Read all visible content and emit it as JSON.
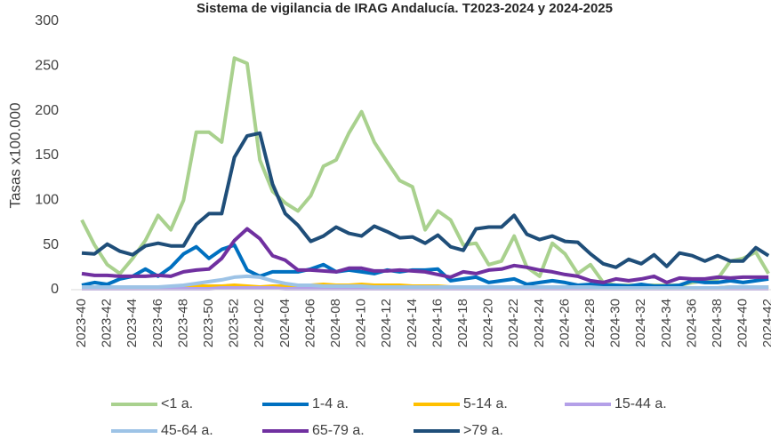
{
  "chart_data": {
    "type": "line",
    "title": "Sistema de vigilancia de IRAG Andalucía. T2023-2024 y 2024-2025",
    "y_label": "Tasas x100.000",
    "categories": [
      "2023-40",
      null,
      "2023-42",
      null,
      "2023-44",
      null,
      "2023-46",
      null,
      "2023-48",
      null,
      "2023-50",
      null,
      "2023-52",
      null,
      "2024-02",
      null,
      "2024-04",
      null,
      "2024-06",
      null,
      "2024-08",
      null,
      "2024-10",
      null,
      "2024-12",
      null,
      "2024-14",
      null,
      "2024-16",
      null,
      "2024-18",
      null,
      "2024-20",
      null,
      "2024-22",
      null,
      "2024-24",
      null,
      "2024-26",
      null,
      "2024-28",
      null,
      "2024-30",
      null,
      "2024-32",
      null,
      "2024-34",
      null,
      "2024-36",
      null,
      "2024-38",
      null,
      "2024-40",
      null,
      "2024-42"
    ],
    "ylim": [
      0,
      300
    ],
    "yticks": [
      0,
      50,
      100,
      150,
      200,
      250,
      300
    ],
    "grid": false,
    "series": [
      {
        "name": "<1 a.",
        "color": "#a9d18e",
        "values": [
          78,
          50,
          28,
          18,
          35,
          55,
          83,
          67,
          100,
          176,
          176,
          165,
          259,
          253,
          145,
          110,
          97,
          88,
          105,
          138,
          145,
          175,
          199,
          165,
          143,
          122,
          115,
          67,
          88,
          78,
          50,
          52,
          28,
          32,
          60,
          25,
          15,
          52,
          40,
          18,
          28,
          8,
          5,
          5,
          5,
          5,
          5,
          5,
          8,
          10,
          12,
          32,
          35,
          42,
          18
        ]
      },
      {
        "name": "1-4 a.",
        "color": "#0070c0",
        "values": [
          5,
          8,
          6,
          12,
          15,
          23,
          15,
          25,
          40,
          48,
          35,
          45,
          50,
          22,
          15,
          20,
          20,
          20,
          23,
          28,
          20,
          22,
          20,
          18,
          22,
          20,
          22,
          22,
          23,
          10,
          12,
          14,
          8,
          10,
          12,
          6,
          8,
          10,
          8,
          5,
          6,
          5,
          5,
          4,
          6,
          4,
          4,
          5,
          10,
          8,
          8,
          10,
          8,
          10,
          12
        ]
      },
      {
        "name": "5-14 a.",
        "color": "#ffc000",
        "values": [
          3,
          3,
          2,
          2,
          3,
          3,
          3,
          3,
          3,
          4,
          4,
          4,
          5,
          4,
          3,
          4,
          4,
          5,
          5,
          6,
          5,
          5,
          6,
          5,
          5,
          5,
          4,
          4,
          4,
          3,
          3,
          3,
          2,
          2,
          3,
          2,
          2,
          2,
          2,
          2,
          2,
          2,
          1,
          1,
          2,
          2,
          1,
          2,
          2,
          2,
          2,
          3,
          3,
          3,
          3
        ]
      },
      {
        "name": "15-44 a.",
        "color": "#b4a0e8",
        "values": [
          1,
          1,
          1,
          1,
          1,
          1,
          1,
          1,
          1,
          1,
          1,
          2,
          2,
          2,
          2,
          2,
          1,
          1,
          1,
          1,
          1,
          1,
          1,
          1,
          1,
          1,
          1,
          1,
          1,
          1,
          1,
          1,
          1,
          1,
          1,
          1,
          1,
          1,
          1,
          1,
          1,
          1,
          1,
          1,
          1,
          1,
          1,
          1,
          1,
          1,
          1,
          1,
          1,
          1,
          1
        ]
      },
      {
        "name": "45-64 a.",
        "color": "#9dc3e6",
        "values": [
          3,
          3,
          3,
          3,
          3,
          3,
          3,
          4,
          5,
          7,
          9,
          11,
          14,
          15,
          14,
          10,
          7,
          5,
          5,
          4,
          4,
          4,
          4,
          3,
          3,
          3,
          3,
          3,
          3,
          3,
          3,
          3,
          3,
          3,
          3,
          3,
          3,
          3,
          3,
          3,
          3,
          2,
          2,
          2,
          2,
          2,
          2,
          2,
          2,
          2,
          2,
          3,
          3,
          3,
          3
        ]
      },
      {
        "name": "65-79 a.",
        "color": "#7030a0",
        "values": [
          18,
          16,
          16,
          15,
          15,
          15,
          16,
          15,
          20,
          22,
          23,
          35,
          55,
          68,
          57,
          38,
          33,
          22,
          22,
          21,
          20,
          24,
          24,
          21,
          21,
          22,
          21,
          20,
          17,
          14,
          20,
          18,
          22,
          23,
          27,
          25,
          22,
          20,
          17,
          15,
          10,
          8,
          12,
          10,
          12,
          15,
          8,
          13,
          12,
          12,
          14,
          13,
          14,
          14,
          14
        ]
      },
      {
        "name": ">79 a.",
        "color": "#1f4e79",
        "values": [
          41,
          40,
          51,
          43,
          39,
          49,
          52,
          49,
          49,
          73,
          85,
          85,
          148,
          172,
          175,
          118,
          85,
          72,
          54,
          60,
          70,
          63,
          60,
          71,
          65,
          58,
          59,
          52,
          61,
          48,
          44,
          68,
          70,
          70,
          83,
          62,
          56,
          60,
          54,
          53,
          40,
          29,
          25,
          34,
          29,
          39,
          26,
          41,
          38,
          32,
          38,
          32,
          32,
          47,
          38
        ]
      }
    ]
  }
}
